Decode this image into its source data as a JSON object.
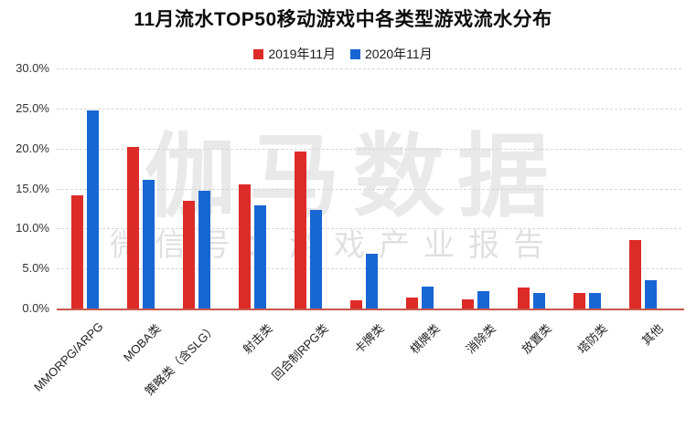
{
  "header": {
    "title": "11月流水TOP50移动游戏中各类型游戏流水分布"
  },
  "watermark": {
    "line1": "伽马数据",
    "line2": "微信号：游戏产业报告"
  },
  "chart_data": {
    "type": "bar",
    "title": "11月流水TOP50移动游戏中各类型游戏流水分布",
    "categories": [
      "MMORPG/ARPG",
      "MOBA类",
      "策略类（含SLG）",
      "射击类",
      "回合制RPG类",
      "卡牌类",
      "棋牌类",
      "消除类",
      "放置类",
      "塔防类",
      "其他"
    ],
    "series": [
      {
        "name": "2019年11月",
        "color": "#dd2b28",
        "values": [
          14.2,
          20.2,
          13.5,
          15.5,
          19.6,
          1.0,
          1.4,
          1.1,
          2.6,
          1.9,
          8.5
        ]
      },
      {
        "name": "2020年11月",
        "color": "#1766d4",
        "values": [
          24.8,
          16.1,
          14.7,
          12.9,
          12.3,
          6.8,
          2.7,
          2.2,
          1.9,
          1.9,
          3.5
        ]
      }
    ],
    "xlabel": "",
    "ylabel": "",
    "ylim": [
      0,
      30
    ],
    "ytick_step": 5,
    "ytick_labels": [
      "30.0%",
      "25.0%",
      "20.0%",
      "15.0%",
      "10.0%",
      "5.0%",
      "0.0%"
    ],
    "grid": "horizontal-dashed",
    "legend_position": "top",
    "baseline_color": "#c9574c"
  }
}
